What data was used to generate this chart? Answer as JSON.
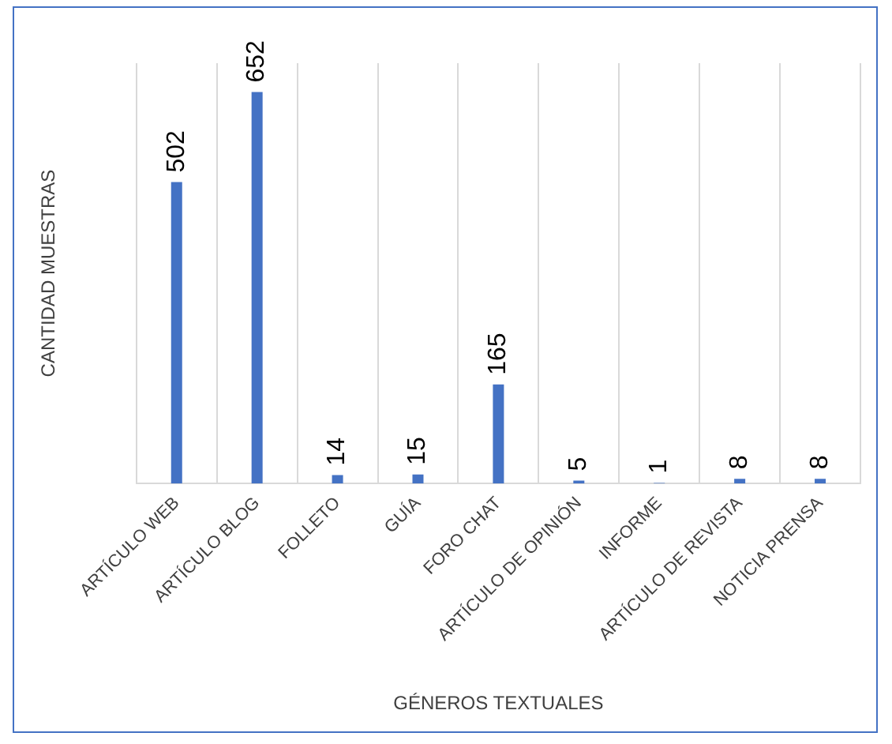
{
  "chart_data": {
    "type": "bar",
    "xlabel": "GÉNEROS TEXTUALES",
    "ylabel": "CANTIDAD MUESTRAS",
    "categories": [
      "ARTÍCULO WEB",
      "ARTÍCULO BLOG",
      "FOLLETO",
      "GUÍA",
      "FORO CHAT",
      "ARTÍCULO DE OPINIÓN",
      "INFORME",
      "ARTÍCULO DE REVISTA",
      "NOTICIA PRENSA"
    ],
    "values": [
      502,
      652,
      14,
      15,
      165,
      5,
      1,
      8,
      8
    ],
    "color": "#4472c4",
    "data_labels": true,
    "grid": "x",
    "legend": false
  }
}
